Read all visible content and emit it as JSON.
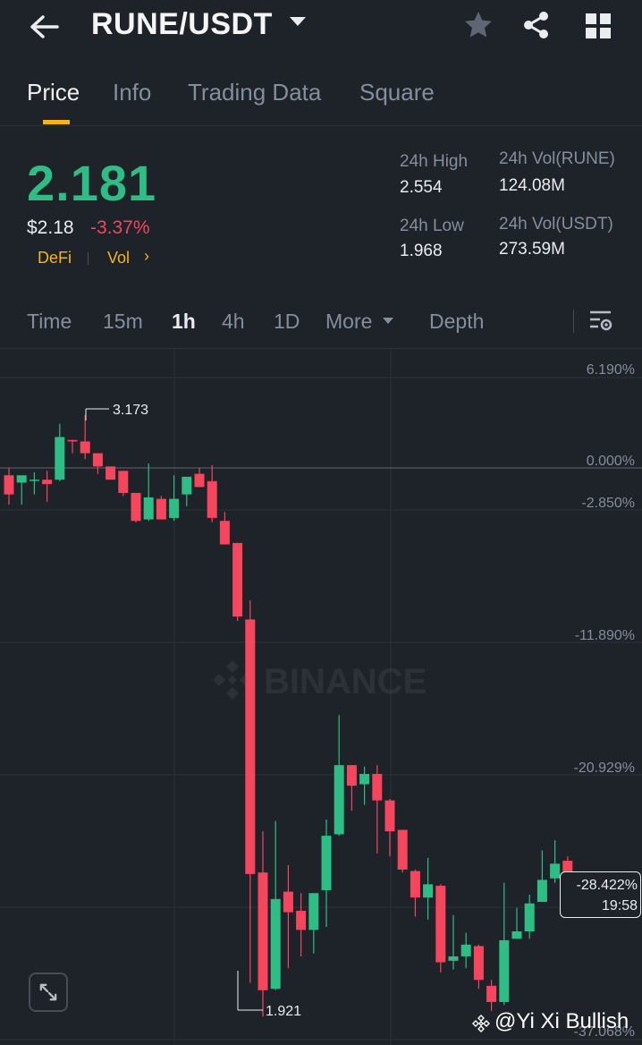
{
  "header": {
    "pair": "RUNE/USDT",
    "icons": [
      "back-arrow-icon",
      "dropdown-caret-icon",
      "star-icon",
      "share-icon",
      "grid-icon"
    ]
  },
  "tabs": [
    {
      "label": "Price",
      "active": true
    },
    {
      "label": "Info"
    },
    {
      "label": "Trading Data"
    },
    {
      "label": "Square"
    }
  ],
  "price": {
    "last": "2.181",
    "fiat": "$2.18",
    "change": "-3.37%",
    "tags": [
      "DeFi",
      "Vol"
    ],
    "tag_chevron": "›"
  },
  "stats": {
    "high_label": "24h High",
    "high_value": "2.554",
    "low_label": "24h Low",
    "low_value": "1.968",
    "vol_base_label": "24h Vol(RUNE)",
    "vol_base_value": "124.08M",
    "vol_quote_label": "24h Vol(USDT)",
    "vol_quote_value": "273.59M"
  },
  "chart_toolbar": {
    "items": [
      {
        "label": "Time"
      },
      {
        "label": "15m"
      },
      {
        "label": "1h",
        "active": true
      },
      {
        "label": "4h"
      },
      {
        "label": "1D"
      },
      {
        "label": "More"
      },
      {
        "label": "Depth"
      }
    ]
  },
  "chart": {
    "watermark": "BINANCE",
    "user_watermark": "@Yi Xi Bullish",
    "current_pct": "-28.422%",
    "countdown": "19:58",
    "colors": {
      "up": "#2ebd85",
      "down": "#f6465d",
      "grid": "#2b3139",
      "bg": "#1e2329"
    }
  },
  "chart_data": {
    "type": "candlestick",
    "y_axis_labels": [
      "6.190%",
      "0.000%",
      "-2.850%",
      "-11.890%",
      "-20.929%",
      "-37.068%"
    ],
    "high_marker": "3.173",
    "low_marker": "1.921",
    "current_pct": "-28.422%",
    "candles": [
      {
        "o": -0.5,
        "h": 0.0,
        "l": -2.5,
        "c": -1.8
      },
      {
        "o": -1.0,
        "h": -0.7,
        "l": -2.5,
        "c": -0.5
      },
      {
        "o": -0.8,
        "h": -0.3,
        "l": -1.8,
        "c": -0.8
      },
      {
        "o": -0.8,
        "h": -0.2,
        "l": -2.3,
        "c": -1.1
      },
      {
        "o": -0.8,
        "h": 3.0,
        "l": -0.9,
        "c": 2.1
      },
      {
        "o": 1.9,
        "h": 1.9,
        "l": 1.0,
        "c": 1.8
      },
      {
        "o": 1.8,
        "h": 3.6,
        "l": 0.6,
        "c": 1.0
      },
      {
        "o": 1.0,
        "h": 1.0,
        "l": -0.4,
        "c": 0.1
      },
      {
        "o": 0.1,
        "h": 0.1,
        "l": -0.6,
        "c": -0.8
      },
      {
        "o": -0.2,
        "h": -0.2,
        "l": -1.9,
        "c": -1.7
      },
      {
        "o": -1.7,
        "h": -1.7,
        "l": -3.7,
        "c": -3.6
      },
      {
        "o": -3.5,
        "h": 0.3,
        "l": -3.6,
        "c": -2.0
      },
      {
        "o": -2.1,
        "h": -1.9,
        "l": -3.5,
        "c": -3.5
      },
      {
        "o": -3.4,
        "h": -0.5,
        "l": -3.6,
        "c": -2.1
      },
      {
        "o": -1.8,
        "h": -1.0,
        "l": -2.6,
        "c": -0.6
      },
      {
        "o": -0.4,
        "h": 0.0,
        "l": -1.3,
        "c": -1.3
      },
      {
        "o": -0.9,
        "h": 0.2,
        "l": -3.7,
        "c": -3.4
      },
      {
        "o": -3.6,
        "h": -3.0,
        "l": -5.2,
        "c": -5.2
      },
      {
        "o": -5.1,
        "h": -5.1,
        "l": -10.4,
        "c": -10.1
      },
      {
        "o": -10.3,
        "h": -9.0,
        "l": -35.0,
        "c": -27.6
      },
      {
        "o": -27.5,
        "h": -24.7,
        "l": -37.3,
        "c": -35.5
      },
      {
        "o": -35.4,
        "h": -24.0,
        "l": -35.5,
        "c": -29.3
      },
      {
        "o": -28.8,
        "h": -27.0,
        "l": -34.0,
        "c": -30.2
      },
      {
        "o": -30.1,
        "h": -28.9,
        "l": -33.2,
        "c": -31.4
      },
      {
        "o": -31.4,
        "h": -29.0,
        "l": -33.0,
        "c": -28.9
      },
      {
        "o": -28.7,
        "h": -23.9,
        "l": -31.2,
        "c": -25.0
      },
      {
        "o": -24.9,
        "h": -16.8,
        "l": -25.0,
        "c": -20.2
      },
      {
        "o": -20.2,
        "h": -20.2,
        "l": -23.3,
        "c": -21.6
      },
      {
        "o": -21.5,
        "h": -20.3,
        "l": -22.9,
        "c": -20.8
      },
      {
        "o": -20.8,
        "h": -20.2,
        "l": -26.2,
        "c": -22.6
      },
      {
        "o": -22.6,
        "h": -22.5,
        "l": -26.4,
        "c": -24.7
      },
      {
        "o": -24.6,
        "h": -24.6,
        "l": -27.5,
        "c": -27.3
      },
      {
        "o": -27.4,
        "h": -27.3,
        "l": -30.5,
        "c": -29.2
      },
      {
        "o": -29.2,
        "h": -26.5,
        "l": -30.7,
        "c": -28.3
      },
      {
        "o": -28.4,
        "h": -28.3,
        "l": -34.3,
        "c": -33.6
      },
      {
        "o": -33.5,
        "h": -30.4,
        "l": -34.1,
        "c": -33.2
      },
      {
        "o": -33.2,
        "h": -31.6,
        "l": -34.0,
        "c": -32.4
      },
      {
        "o": -32.5,
        "h": -32.4,
        "l": -35.4,
        "c": -34.8
      },
      {
        "o": -35.2,
        "h": -34.8,
        "l": -36.9,
        "c": -36.3
      },
      {
        "o": -36.3,
        "h": -28.2,
        "l": -36.5,
        "c": -32.1
      },
      {
        "o": -32.0,
        "h": -29.9,
        "l": -32.0,
        "c": -31.5
      },
      {
        "o": -31.5,
        "h": -29.0,
        "l": -32.0,
        "c": -29.6
      },
      {
        "o": -29.5,
        "h": -26.0,
        "l": -29.5,
        "c": -28.0
      },
      {
        "o": -27.9,
        "h": -25.3,
        "l": -28.2,
        "c": -26.9
      },
      {
        "o": -26.7,
        "h": -26.4,
        "l": -29.4,
        "c": -29.3
      },
      {
        "o": -28.8,
        "h": -28.1,
        "l": -29.3,
        "c": -28.4
      }
    ]
  }
}
